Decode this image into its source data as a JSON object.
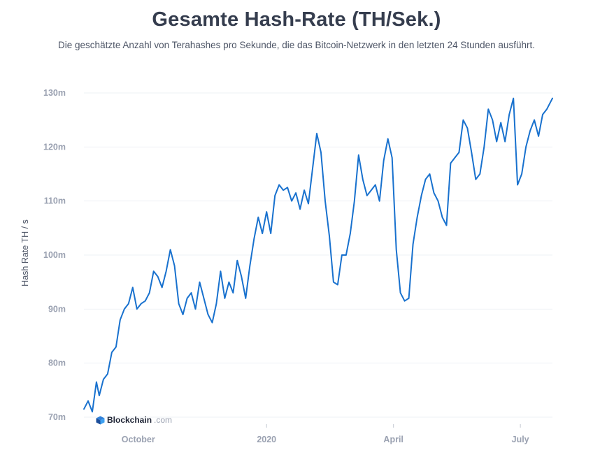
{
  "title": "Gesamte Hash-Rate (TH/Sek.)",
  "subtitle": "Die geschätzte Anzahl von Terahashes pro Sekunde, die das Bitcoin-Netzwerk in den letzten 24 Stunden ausführt.",
  "brand": {
    "name": "Blockchain",
    "suffix": ".com"
  },
  "colors": {
    "line": "#1871ce",
    "tick_text": "#9aa1b1",
    "grid": "#eef0f4",
    "title": "#353d4e"
  },
  "chart_data": {
    "type": "line",
    "title": "Gesamte Hash-Rate (TH/Sek.)",
    "xlabel": "",
    "ylabel": "Hash Rate TH / s",
    "ylim": [
      70,
      130
    ],
    "xlim": [
      "2019-08-23",
      "2020-07-24"
    ],
    "grid": true,
    "yticks": [
      {
        "value": 70,
        "label": "70m"
      },
      {
        "value": 80,
        "label": "80m"
      },
      {
        "value": 90,
        "label": "90m"
      },
      {
        "value": 100,
        "label": "100m"
      },
      {
        "value": 110,
        "label": "110m"
      },
      {
        "value": 120,
        "label": "120m"
      },
      {
        "value": 130,
        "label": "130m"
      }
    ],
    "xticks": [
      {
        "date": "2019-10-01",
        "label": "October",
        "marker": false
      },
      {
        "date": "2020-01-01",
        "label": "2020",
        "marker": true
      },
      {
        "date": "2020-04-01",
        "label": "April",
        "marker": true
      },
      {
        "date": "2020-07-01",
        "label": "July",
        "marker": true
      }
    ],
    "series": [
      {
        "x": [
          "2019-08-23",
          "2019-08-26",
          "2019-08-29",
          "2019-09-01",
          "2019-09-03",
          "2019-09-06",
          "2019-09-09",
          "2019-09-12",
          "2019-09-15",
          "2019-09-18",
          "2019-09-21",
          "2019-09-24",
          "2019-09-27",
          "2019-09-30",
          "2019-10-03",
          "2019-10-06",
          "2019-10-09",
          "2019-10-12",
          "2019-10-15",
          "2019-10-18",
          "2019-10-21",
          "2019-10-24",
          "2019-10-27",
          "2019-10-30",
          "2019-11-02",
          "2019-11-05",
          "2019-11-08",
          "2019-11-11",
          "2019-11-14",
          "2019-11-17",
          "2019-11-20",
          "2019-11-23",
          "2019-11-26",
          "2019-11-29",
          "2019-12-02",
          "2019-12-05",
          "2019-12-08",
          "2019-12-11",
          "2019-12-14",
          "2019-12-17",
          "2019-12-20",
          "2019-12-23",
          "2019-12-26",
          "2019-12-29",
          "2020-01-01",
          "2020-01-04",
          "2020-01-07",
          "2020-01-10",
          "2020-01-13",
          "2020-01-16",
          "2020-01-19",
          "2020-01-22",
          "2020-01-25",
          "2020-01-28",
          "2020-01-31",
          "2020-02-03",
          "2020-02-06",
          "2020-02-09",
          "2020-02-12",
          "2020-02-15",
          "2020-02-18",
          "2020-02-21",
          "2020-02-24",
          "2020-02-27",
          "2020-03-01",
          "2020-03-04",
          "2020-03-07",
          "2020-03-10",
          "2020-03-13",
          "2020-03-16",
          "2020-03-19",
          "2020-03-22",
          "2020-03-25",
          "2020-03-28",
          "2020-03-31",
          "2020-04-03",
          "2020-04-06",
          "2020-04-09",
          "2020-04-12",
          "2020-04-15",
          "2020-04-18",
          "2020-04-21",
          "2020-04-24",
          "2020-04-27",
          "2020-04-30",
          "2020-05-03",
          "2020-05-06",
          "2020-05-09",
          "2020-05-12",
          "2020-05-15",
          "2020-05-18",
          "2020-05-21",
          "2020-05-24",
          "2020-05-27",
          "2020-05-30",
          "2020-06-02",
          "2020-06-05",
          "2020-06-08",
          "2020-06-11",
          "2020-06-14",
          "2020-06-17",
          "2020-06-20",
          "2020-06-23",
          "2020-06-26",
          "2020-06-29",
          "2020-07-02",
          "2020-07-05",
          "2020-07-08",
          "2020-07-11",
          "2020-07-14",
          "2020-07-17",
          "2020-07-20",
          "2020-07-24"
        ],
        "y": [
          71.5,
          73.0,
          71.0,
          76.5,
          74.0,
          77.0,
          78.0,
          82.0,
          83.0,
          88.0,
          90.0,
          91.0,
          94.0,
          90.0,
          91.0,
          91.5,
          93.0,
          97.0,
          96.0,
          94.0,
          97.0,
          101.0,
          98.0,
          91.0,
          89.0,
          92.0,
          93.0,
          90.0,
          95.0,
          92.0,
          89.0,
          87.5,
          91.0,
          97.0,
          92.0,
          95.0,
          93.0,
          99.0,
          96.0,
          92.0,
          98.0,
          103.0,
          107.0,
          104.0,
          108.0,
          104.0,
          111.0,
          113.0,
          112.0,
          112.5,
          110.0,
          111.5,
          108.5,
          112.0,
          109.5,
          116.0,
          122.5,
          119.0,
          110.0,
          103.5,
          95.0,
          94.5,
          100.0,
          100.0,
          104.0,
          110.0,
          118.5,
          114.0,
          111.0,
          112.0,
          113.0,
          110.0,
          117.5,
          121.5,
          118.0,
          101.0,
          93.0,
          91.5,
          92.0,
          102.0,
          107.0,
          111.0,
          114.0,
          115.0,
          111.5,
          110.0,
          107.0,
          105.5,
          117.0,
          118.0,
          119.0,
          125.0,
          123.5,
          119.0,
          114.0,
          115.0,
          120.0,
          127.0,
          125.0,
          121.0,
          124.5,
          121.0,
          126.0,
          129.0,
          113.0,
          115.0,
          120.0,
          123.0,
          125.0,
          122.0,
          126.0,
          127.0,
          129.0
        ]
      }
    ]
  }
}
